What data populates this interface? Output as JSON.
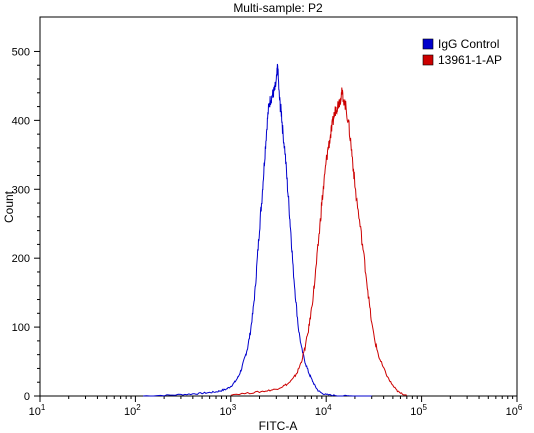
{
  "chart_data": {
    "type": "line",
    "title": "Multi-sample: P2",
    "xlabel": "FITC-A",
    "ylabel": "Count",
    "xscale": "log",
    "xlim": [
      10,
      1000000
    ],
    "ylim": [
      0,
      550
    ],
    "x_ticks": [
      {
        "value": 10,
        "base": "10",
        "exp": "1"
      },
      {
        "value": 100,
        "base": "10",
        "exp": "2"
      },
      {
        "value": 1000,
        "base": "10",
        "exp": "3"
      },
      {
        "value": 10000,
        "base": "10",
        "exp": "4"
      },
      {
        "value": 100000,
        "base": "10",
        "exp": "5"
      },
      {
        "value": 1000000,
        "base": "10",
        "exp": "6"
      }
    ],
    "y_ticks": [
      "0",
      "100",
      "200",
      "300",
      "400",
      "500"
    ],
    "legend_position": "top-right",
    "series": [
      {
        "name": "IgG Control",
        "color": "#0000cc",
        "x": [
          120,
          200,
          300,
          400,
          500,
          600,
          700,
          800,
          900,
          1000,
          1100,
          1200,
          1300,
          1400,
          1500,
          1600,
          1700,
          1800,
          1900,
          2000,
          2100,
          2200,
          2300,
          2400,
          2500,
          2600,
          2700,
          2800,
          2900,
          3000,
          3100,
          3200,
          3300,
          3400,
          3500,
          3700,
          3900,
          4100,
          4300,
          4500,
          4800,
          5100,
          5500,
          6000,
          6500,
          7000,
          7600,
          8200,
          9000,
          10000,
          12000,
          15000,
          20000,
          30000
        ],
        "y": [
          0,
          1,
          2,
          3,
          4,
          5,
          6,
          8,
          10,
          14,
          20,
          28,
          40,
          55,
          70,
          92,
          120,
          155,
          200,
          245,
          280,
          320,
          360,
          395,
          420,
          430,
          435,
          440,
          445,
          455,
          480,
          440,
          420,
          410,
          385,
          355,
          310,
          270,
          230,
          185,
          140,
          100,
          70,
          50,
          35,
          25,
          15,
          8,
          4,
          2,
          1,
          0,
          0,
          0
        ]
      },
      {
        "name": "13961-1-AP",
        "color": "#cc0000",
        "x": [
          1000,
          1500,
          2000,
          2500,
          3000,
          3500,
          4000,
          4500,
          5000,
          5500,
          6000,
          6500,
          7000,
          7500,
          8000,
          8500,
          9000,
          9500,
          10000,
          10500,
          11000,
          11500,
          12000,
          12500,
          13000,
          13500,
          14000,
          14500,
          15000,
          16000,
          17000,
          18000,
          19000,
          20000,
          22000,
          24000,
          26000,
          28000,
          30000,
          33000,
          36000,
          40000,
          45000,
          50000,
          55000,
          60000,
          70000
        ],
        "y": [
          2,
          4,
          6,
          8,
          10,
          14,
          18,
          25,
          35,
          50,
          70,
          95,
          125,
          160,
          200,
          240,
          280,
          310,
          340,
          360,
          375,
          390,
          405,
          415,
          420,
          425,
          430,
          440,
          435,
          420,
          400,
          370,
          340,
          305,
          260,
          220,
          180,
          140,
          105,
          75,
          55,
          40,
          25,
          15,
          8,
          4,
          1
        ]
      }
    ]
  }
}
